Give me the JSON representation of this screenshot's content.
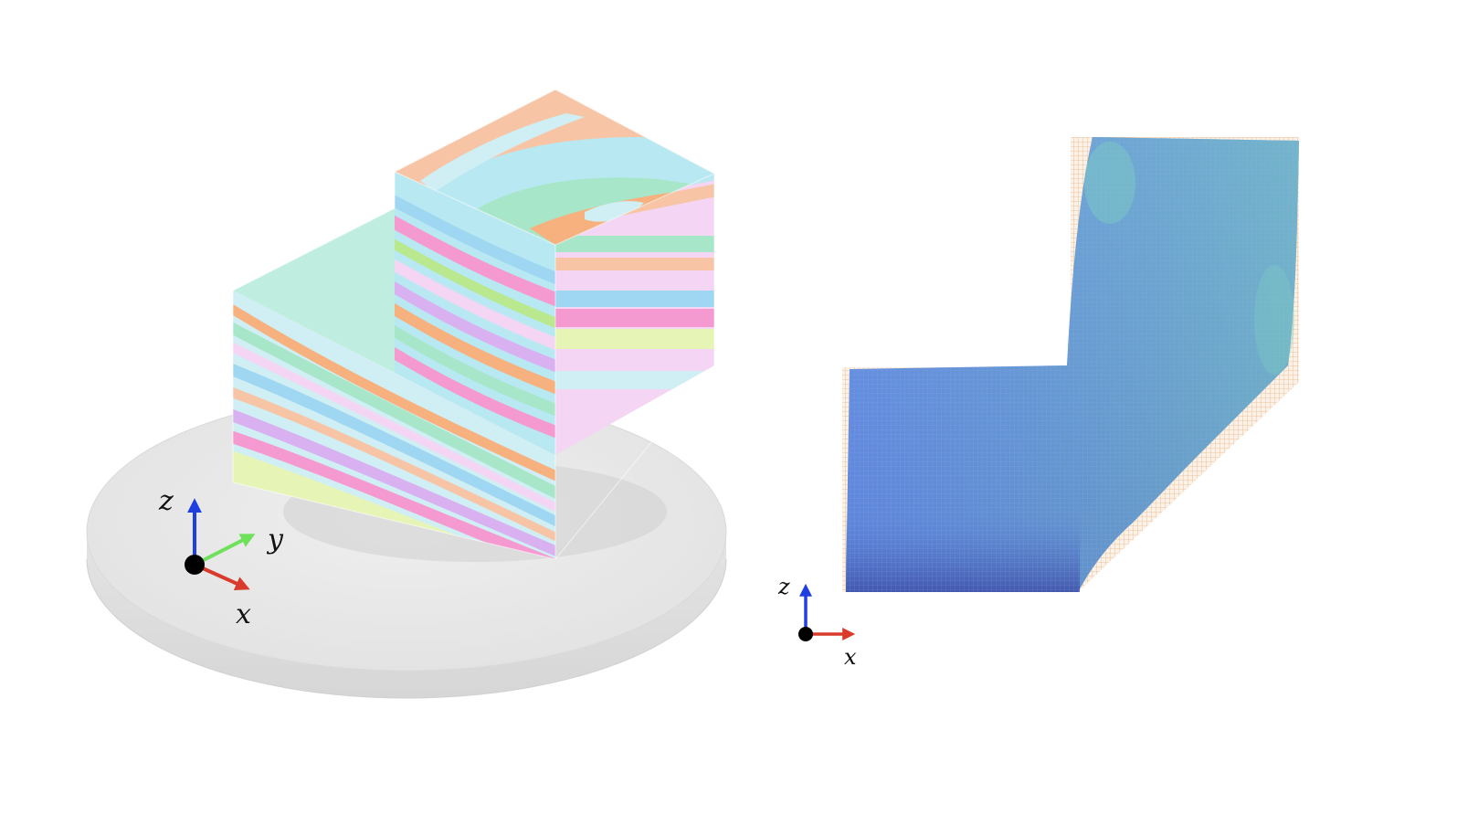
{
  "left_panel": {
    "axes": {
      "z": "z",
      "y": "y",
      "x": "x"
    },
    "colors": {
      "platform": "#e9e9e9",
      "layers": [
        "#a7e6c9",
        "#f7b17e",
        "#b8e9f2",
        "#f6a9c8",
        "#b9e88e",
        "#d9b0f0",
        "#f4d6f4",
        "#f59ad0",
        "#f7c5a6",
        "#9fd7f2",
        "#e6f5b5"
      ]
    }
  },
  "right_panel": {
    "axes": {
      "z": "z",
      "x": "x"
    },
    "colors": {
      "field": "#5e86d9",
      "mesh": "#f2c9a0",
      "highlight": "#7fcfc4"
    }
  },
  "axis_colors": {
    "x": "#d93a2b",
    "y": "#6ee05a",
    "z": "#1f3fe0",
    "origin": "#000000"
  }
}
